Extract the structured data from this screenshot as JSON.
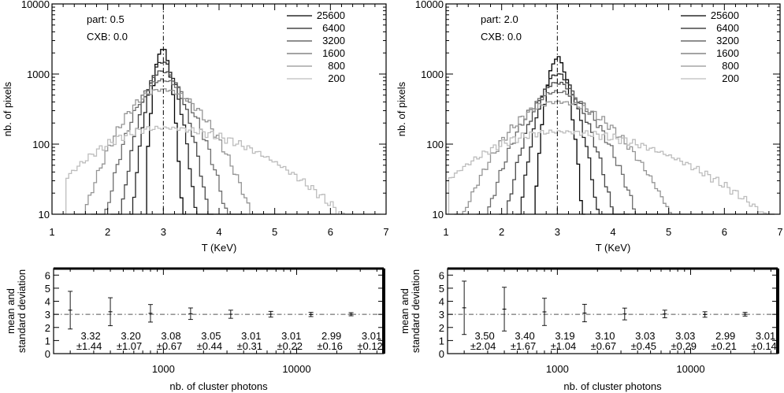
{
  "chart_data": [
    {
      "type": "line",
      "panel": "top-left",
      "xlabel": "T (KeV)",
      "ylabel": "nb. of pixels",
      "xlim": [
        1,
        7
      ],
      "ylim": [
        10,
        10000
      ],
      "yscale": "log",
      "x_ticks": [
        "1",
        "2",
        "3",
        "4",
        "5",
        "6",
        "7"
      ],
      "y_ticks": [
        "10",
        "100",
        "1000",
        "10000"
      ],
      "annotations": [
        "part: 0.5",
        "CXB: 0.0"
      ],
      "vline": 3,
      "legend_position": "top-right",
      "series": [
        {
          "name": "25600",
          "color": "#000000",
          "center": 2.98,
          "peak": 2300,
          "left_width": 0.1,
          "right_width": 0.11,
          "x_start": 2.72,
          "x_end": 3.38
        },
        {
          "name": "6400",
          "color": "#222222",
          "center": 2.98,
          "peak": 1500,
          "left_width": 0.17,
          "right_width": 0.19,
          "x_start": 2.42,
          "x_end": 3.9
        },
        {
          "name": "3200",
          "color": "#4a4a4a",
          "center": 2.98,
          "peak": 1100,
          "left_width": 0.24,
          "right_width": 0.27,
          "x_start": 2.05,
          "x_end": 4.5
        },
        {
          "name": "1600",
          "color": "#6e6e6e",
          "center": 2.98,
          "peak": 820,
          "left_width": 0.34,
          "right_width": 0.39,
          "x_start": 1.7,
          "x_end": 5.1
        },
        {
          "name": "800",
          "color": "#959595",
          "center": 2.98,
          "peak": 600,
          "left_width": 0.49,
          "right_width": 0.56,
          "x_start": 1.4,
          "x_end": 6.1
        },
        {
          "name": "200",
          "color": "#bdbdbd",
          "center": 2.98,
          "peak": 170,
          "left_width": 0.95,
          "right_width": 1.35,
          "x_start": 1.25,
          "x_end": 6.9
        }
      ]
    },
    {
      "type": "line",
      "panel": "top-right",
      "xlabel": "T (KeV)",
      "ylabel": "nb. of pixels",
      "xlim": [
        1,
        7
      ],
      "ylim": [
        10,
        10000
      ],
      "yscale": "log",
      "x_ticks": [
        "1",
        "2",
        "3",
        "4",
        "5",
        "6",
        "7"
      ],
      "y_ticks": [
        "10",
        "100",
        "1000",
        "10000"
      ],
      "annotations": [
        "part: 2.0",
        "CXB: 0.0"
      ],
      "vline": 3,
      "legend_position": "top-right",
      "series": [
        {
          "name": "25600",
          "color": "#000000",
          "center": 3.0,
          "peak": 1700,
          "left_width": 0.13,
          "right_width": 0.14,
          "x_start": 2.62,
          "x_end": 3.52
        },
        {
          "name": "6400",
          "color": "#222222",
          "center": 3.0,
          "peak": 1000,
          "left_width": 0.22,
          "right_width": 0.24,
          "x_start": 2.25,
          "x_end": 4.3
        },
        {
          "name": "3200",
          "color": "#4a4a4a",
          "center": 3.0,
          "peak": 750,
          "left_width": 0.31,
          "right_width": 0.34,
          "x_start": 1.95,
          "x_end": 5.0
        },
        {
          "name": "1600",
          "color": "#6e6e6e",
          "center": 3.0,
          "peak": 560,
          "left_width": 0.44,
          "right_width": 0.5,
          "x_start": 1.55,
          "x_end": 5.8
        },
        {
          "name": "800",
          "color": "#959595",
          "center": 3.0,
          "peak": 400,
          "left_width": 0.62,
          "right_width": 0.75,
          "x_start": 1.15,
          "x_end": 6.9
        },
        {
          "name": "200",
          "color": "#bdbdbd",
          "center": 3.0,
          "peak": 150,
          "left_width": 1.1,
          "right_width": 1.6,
          "x_start": 1.05,
          "x_end": 6.9
        }
      ]
    },
    {
      "type": "scatter",
      "panel": "bottom-left",
      "xlabel": "nb. of cluster photons",
      "ylabel": "mean and standard deviation",
      "xscale": "log",
      "xlim": [
        150,
        45000
      ],
      "ylim": [
        0,
        6.5
      ],
      "x_tick_labels": [
        {
          "v": 1000,
          "t": "1000"
        },
        {
          "v": 10000,
          "t": "10000"
        }
      ],
      "y_ticks": [
        "0",
        "1",
        "2",
        "3",
        "4",
        "5",
        "6"
      ],
      "hline": 3,
      "x": [
        200,
        400,
        800,
        1600,
        3200,
        6400,
        12800,
        25600
      ],
      "mean": [
        3.32,
        3.2,
        3.08,
        3.05,
        3.01,
        3.01,
        2.99,
        3.01
      ],
      "std": [
        1.44,
        1.07,
        0.67,
        0.44,
        0.31,
        0.22,
        0.16,
        0.12
      ],
      "mean_labels": [
        "3.32",
        "3.20",
        "3.08",
        "3.05",
        "3.01",
        "3.01",
        "2.99",
        "3.01"
      ],
      "std_labels": [
        "±1.44",
        "±1.07",
        "±0.67",
        "±0.44",
        "±0.31",
        "±0.22",
        "±0.16",
        "±0.12"
      ]
    },
    {
      "type": "scatter",
      "panel": "bottom-right",
      "xlabel": "nb. of cluster photons",
      "ylabel": "mean and standard deviation",
      "xscale": "log",
      "xlim": [
        150,
        45000
      ],
      "ylim": [
        0,
        6.5
      ],
      "x_tick_labels": [
        {
          "v": 1000,
          "t": "1000"
        },
        {
          "v": 10000,
          "t": "10000"
        }
      ],
      "y_ticks": [
        "0",
        "1",
        "2",
        "3",
        "4",
        "5",
        "6"
      ],
      "hline": 3,
      "x": [
        200,
        400,
        800,
        1600,
        3200,
        6400,
        12800,
        25600
      ],
      "mean": [
        3.5,
        3.4,
        3.19,
        3.1,
        3.03,
        3.03,
        2.99,
        3.01
      ],
      "std": [
        2.04,
        1.67,
        1.04,
        0.67,
        0.45,
        0.29,
        0.21,
        0.14
      ],
      "mean_labels": [
        "3.50",
        "3.40",
        "3.19",
        "3.10",
        "3.03",
        "3.03",
        "2.99",
        "3.01"
      ],
      "std_labels": [
        "±2.04",
        "±1.67",
        "±1.04",
        "±0.67",
        "±0.45",
        "±0.29",
        "±0.21",
        "±0.14"
      ]
    }
  ]
}
